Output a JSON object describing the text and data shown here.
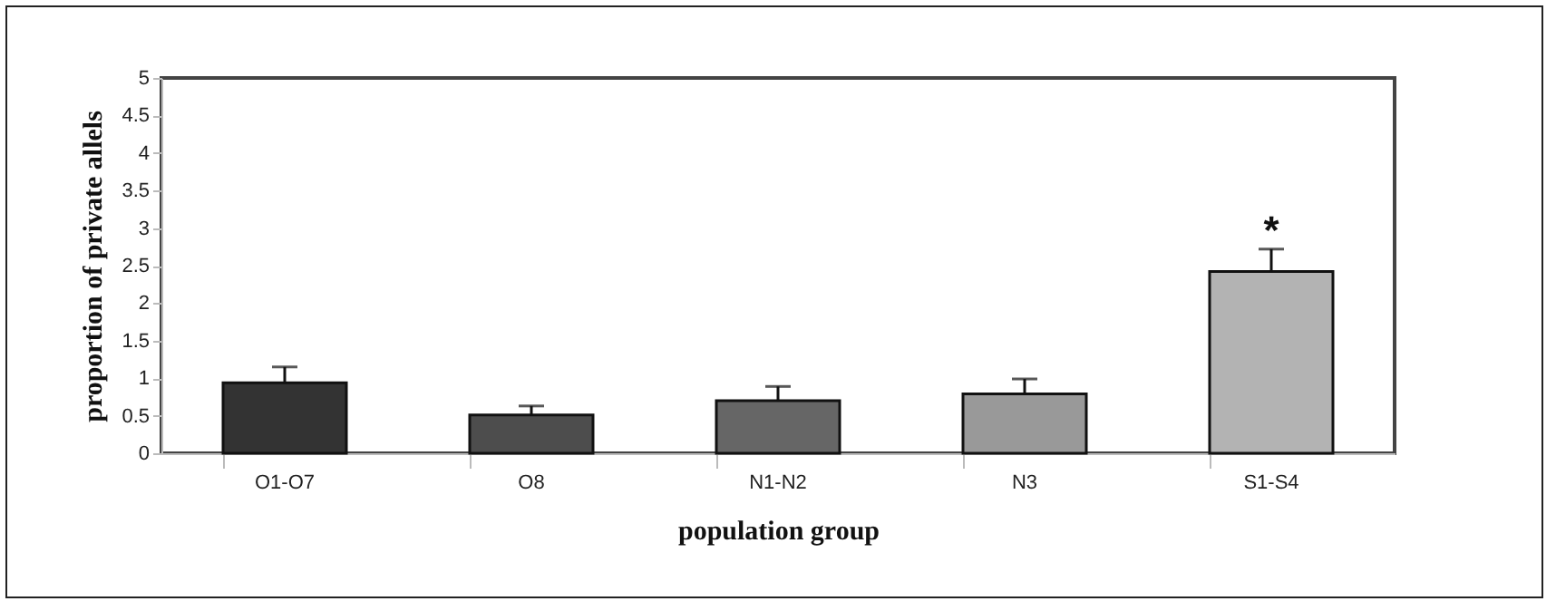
{
  "chart_data": {
    "type": "bar",
    "xlabel": "population group",
    "ylabel": "proportion of private allels",
    "categories": [
      "O1-O7",
      "O8",
      "N1-N2",
      "N3",
      "S1-S4"
    ],
    "values": [
      0.94,
      0.51,
      0.7,
      0.79,
      2.42
    ],
    "colors": [
      "#333333",
      "#4d4d4d",
      "#666666",
      "#999999",
      "#b3b3b3"
    ],
    "errors": [
      [
        0.94,
        1.15
      ],
      [
        0.51,
        0.63
      ],
      [
        0.7,
        0.89
      ],
      [
        0.79,
        0.99
      ],
      [
        2.42,
        2.72
      ]
    ],
    "ylim": [
      0,
      5
    ],
    "yticks": [
      0,
      0.5,
      1,
      1.5,
      2,
      2.5,
      3,
      3.5,
      4,
      4.5,
      5
    ],
    "annotations": [
      "*"
    ],
    "grid": false,
    "legend": false
  }
}
